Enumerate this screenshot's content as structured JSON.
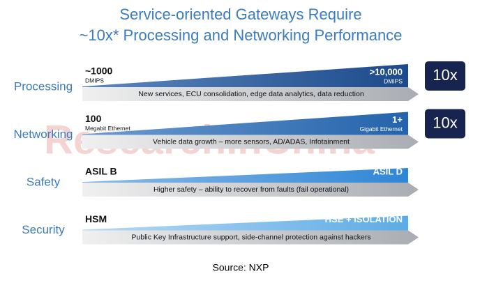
{
  "header": {
    "title_lines": [
      "Service-oriented Gateways Require",
      "~10x* Processing and Networking Performance"
    ]
  },
  "rows": [
    {
      "label": "Processing",
      "start": "~1000",
      "start_unit": "DMIPS",
      "end": ">10,000",
      "end_unit": "DMIPS",
      "description": "New services, ECU consolidation, edge data analytics, data reduction",
      "badge": "10x"
    },
    {
      "label": "Networking",
      "start": "100",
      "start_unit": "Megabit Ethernet",
      "end": "1+",
      "end_unit": "Gigabit Ethernet",
      "description": "Vehicle data growth – more sensors, AD/ADAS, Infotainment",
      "badge": "10x"
    },
    {
      "label": "Safety",
      "start": "ASIL B",
      "end": "ASIL D",
      "description": "Higher safety – ability to recover from faults (fail operational)"
    },
    {
      "label": "Security",
      "start": "HSM",
      "end": "HSE + ISOLATION",
      "description": "Public Key Infrastructure support, side-channel protection against hackers"
    }
  ],
  "watermark": "ResearchInChina",
  "source": "Source: NXP"
}
